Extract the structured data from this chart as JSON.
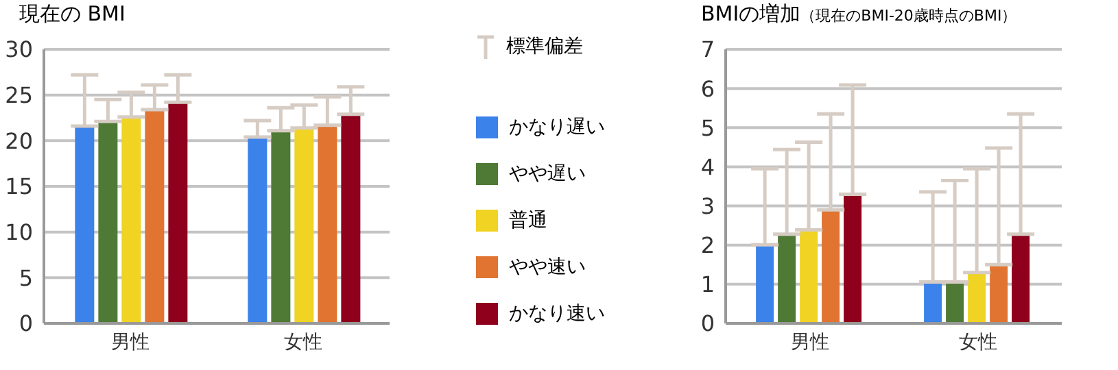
{
  "chart_data": [
    {
      "type": "bar",
      "title": "現在の BMI",
      "categories": [
        "男性",
        "女性"
      ],
      "ylim": [
        0,
        30
      ],
      "yticks": [
        0,
        5,
        10,
        15,
        20,
        25,
        30
      ],
      "grid": "y",
      "legend": "right",
      "legend_title": "標準偏差",
      "series": [
        {
          "name": "かなり遅い",
          "color": "#3b82ea",
          "values": [
            21.6,
            20.4
          ],
          "errors": [
            [
              21.6,
              27.2
            ],
            [
              20.4,
              22.2
            ]
          ]
        },
        {
          "name": "やや遅い",
          "color": "#4e7a35",
          "values": [
            22.1,
            21.1
          ],
          "errors": [
            [
              22.1,
              24.5
            ],
            [
              21.1,
              23.6
            ]
          ]
        },
        {
          "name": "普通",
          "color": "#f0d323",
          "values": [
            22.6,
            21.4
          ],
          "errors": [
            [
              22.6,
              25.3
            ],
            [
              21.4,
              23.9
            ]
          ]
        },
        {
          "name": "やや速い",
          "color": "#e07430",
          "values": [
            23.4,
            21.7
          ],
          "errors": [
            [
              23.4,
              26.1
            ],
            [
              21.7,
              24.8
            ]
          ]
        },
        {
          "name": "かなり速い",
          "color": "#8e001b",
          "values": [
            24.2,
            22.9
          ],
          "errors": [
            [
              24.2,
              27.2
            ],
            [
              22.9,
              25.9
            ]
          ]
        }
      ]
    },
    {
      "type": "bar",
      "title": "BMIの増加",
      "subtitle": "（現在のBMI-20歳時点のBMI）",
      "categories": [
        "男性",
        "女性"
      ],
      "ylim": [
        0,
        7
      ],
      "yticks": [
        0,
        1,
        2,
        3,
        4,
        5,
        6,
        7
      ],
      "grid": "y",
      "series": [
        {
          "color": "#3b82ea",
          "values": [
            2.01,
            1.06
          ],
          "errors": [
            [
              2.01,
              3.95
            ],
            [
              1.06,
              3.36
            ]
          ]
        },
        {
          "color": "#4e7a35",
          "values": [
            2.28,
            1.06
          ],
          "errors": [
            [
              2.28,
              4.44
            ],
            [
              1.06,
              3.65
            ]
          ]
        },
        {
          "color": "#f0d323",
          "values": [
            2.39,
            1.3
          ],
          "errors": [
            [
              2.39,
              4.63
            ],
            [
              1.3,
              3.95
            ]
          ]
        },
        {
          "color": "#e07430",
          "values": [
            2.9,
            1.5
          ],
          "errors": [
            [
              2.9,
              5.35
            ],
            [
              1.5,
              4.48
            ]
          ]
        },
        {
          "color": "#8e001b",
          "values": [
            3.3,
            2.28
          ],
          "errors": [
            [
              3.3,
              6.09
            ],
            [
              2.28,
              5.35
            ]
          ]
        }
      ]
    }
  ]
}
